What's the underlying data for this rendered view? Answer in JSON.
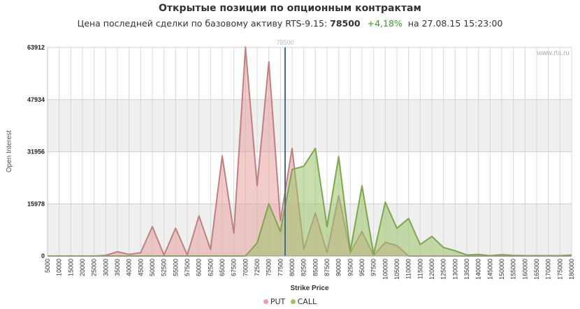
{
  "title": "Открытые позиции по опционным контрактам",
  "subtitle": {
    "prefix": "Цена последней сделки по базовому активу RTS-9.15:",
    "price": "78500",
    "change": "+4,18%",
    "suffix": "на 27.08.15 15:23:00"
  },
  "watermark": "www.rts.ru",
  "colors": {
    "put_line": "#c08080",
    "put_fill": "#e8a0a0",
    "call_line": "#7aa84a",
    "call_fill": "#9bc46a",
    "current_price_line": "#4a6a90",
    "band": "#efefef",
    "change_positive": "#3a9a2a"
  },
  "chart_data": {
    "type": "area",
    "title": "Открытые позиции по опционным контрактам",
    "xlabel": "Strike Price",
    "ylabel": "Open Interest",
    "ylim": [
      0,
      63912
    ],
    "yticks": [
      0,
      15978,
      31956,
      47934,
      63912
    ],
    "grid": true,
    "legend_position": "bottom-center",
    "current_price": {
      "value": 78500,
      "label": "78500"
    },
    "categories": [
      "5000",
      "10000",
      "15000",
      "20000",
      "25000",
      "30000",
      "35000",
      "40000",
      "45000",
      "50000",
      "52500",
      "55000",
      "57500",
      "60000",
      "62500",
      "65000",
      "67500",
      "70000",
      "72500",
      "75000",
      "77500",
      "80000",
      "82500",
      "85000",
      "87500",
      "90000",
      "92500",
      "95000",
      "97500",
      "100000",
      "105000",
      "110000",
      "115000",
      "120000",
      "125000",
      "130000",
      "135000",
      "140000",
      "145000",
      "150000",
      "155000",
      "160000",
      "165000",
      "170000",
      "175000",
      "180000"
    ],
    "series": [
      {
        "name": "PUT",
        "values": [
          0,
          0,
          0,
          0,
          0,
          200,
          1300,
          500,
          1000,
          9000,
          300,
          8500,
          300,
          12300,
          2000,
          30700,
          7000,
          64000,
          21500,
          59500,
          10800,
          33000,
          2000,
          13200,
          1000,
          18500,
          1000,
          7500,
          100,
          4200,
          3200,
          0,
          0,
          0,
          0,
          0,
          0,
          0,
          0,
          0,
          0,
          0,
          0,
          0,
          0,
          0
        ]
      },
      {
        "name": "CALL",
        "values": [
          0,
          0,
          0,
          0,
          0,
          0,
          0,
          0,
          0,
          0,
          0,
          0,
          0,
          0,
          0,
          0,
          0,
          0,
          4000,
          16000,
          7500,
          26500,
          27500,
          33000,
          9000,
          30500,
          1500,
          21500,
          500,
          16500,
          8500,
          11500,
          3500,
          6000,
          2600,
          1600,
          300,
          500,
          100,
          400,
          200,
          100,
          100,
          100,
          100,
          300
        ]
      }
    ]
  },
  "legend": [
    {
      "name": "PUT",
      "color": "#e8a0a0"
    },
    {
      "name": "CALL",
      "color": "#9bc46a"
    }
  ]
}
